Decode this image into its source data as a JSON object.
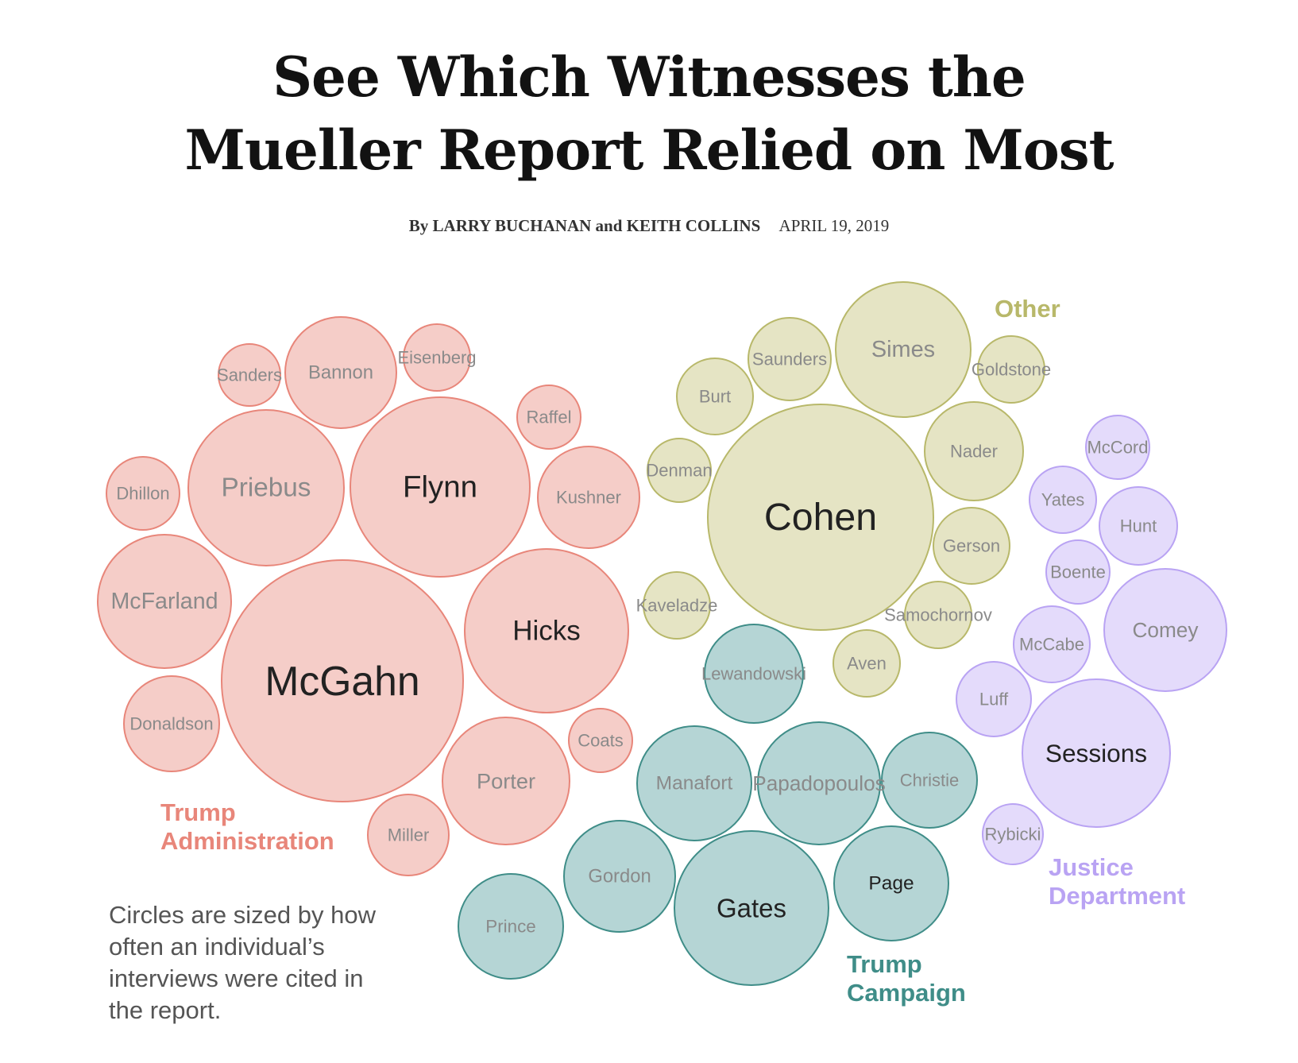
{
  "header": {
    "title_line1": "See Which Witnesses the",
    "title_line2": "Mueller Report Relied on Most",
    "byline": "By LARRY BUCHANAN and KEITH COLLINS",
    "date": "APRIL 19, 2019"
  },
  "note": "Circles are sized by how often an individual’s interviews were cited in the report.",
  "groups": [
    {
      "id": "admin",
      "label_line1": "Trump",
      "label_line2": "Administration",
      "color": "#e8867a",
      "fill": "#f5cdc8"
    },
    {
      "id": "other",
      "label_line1": "Other",
      "label_line2": "",
      "color": "#b8b86a",
      "fill": "#e5e4c4"
    },
    {
      "id": "doj",
      "label_line1": "Justice",
      "label_line2": "Department",
      "color": "#b9a3f3",
      "fill": "#e4dbfb"
    },
    {
      "id": "campaign",
      "label_line1": "Trump",
      "label_line2": "Campaign",
      "color": "#3f8d88",
      "fill": "#b5d5d5"
    }
  ],
  "chart_data": {
    "type": "bubble",
    "size_meaning": "how often an individual’s interviews were cited in the report",
    "series": [
      {
        "name": "Trump Administration",
        "witnesses": [
          {
            "name": "McGahn",
            "size": 100
          },
          {
            "name": "Flynn",
            "size": 54
          },
          {
            "name": "Hicks",
            "size": 46
          },
          {
            "name": "Priebus",
            "size": 40
          },
          {
            "name": "Porter",
            "size": 28
          },
          {
            "name": "McFarland",
            "size": 30
          },
          {
            "name": "Kushner",
            "size": 18
          },
          {
            "name": "Bannon",
            "size": 20
          },
          {
            "name": "Donaldson",
            "size": 16
          },
          {
            "name": "Miller",
            "size": 11
          },
          {
            "name": "Dhillon",
            "size": 9
          },
          {
            "name": "Raffel",
            "size": 7
          },
          {
            "name": "Eisenberg",
            "size": 7
          },
          {
            "name": "Coats",
            "size": 7
          },
          {
            "name": "Sanders",
            "size": 6
          }
        ]
      },
      {
        "name": "Other",
        "witnesses": [
          {
            "name": "Cohen",
            "size": 87
          },
          {
            "name": "Simes",
            "size": 30
          },
          {
            "name": "Nader",
            "size": 16
          },
          {
            "name": "Saunders",
            "size": 11
          },
          {
            "name": "Burt",
            "size": 10
          },
          {
            "name": "Gerson",
            "size": 9
          },
          {
            "name": "Goldstone",
            "size": 7
          },
          {
            "name": "Denman",
            "size": 7
          },
          {
            "name": "Kaveladze",
            "size": 7
          },
          {
            "name": "Samochornov",
            "size": 7
          },
          {
            "name": "Aven",
            "size": 7
          }
        ]
      },
      {
        "name": "Justice Department",
        "witnesses": [
          {
            "name": "Sessions",
            "size": 37
          },
          {
            "name": "Comey",
            "size": 25
          },
          {
            "name": "Hunt",
            "size": 10
          },
          {
            "name": "McCabe",
            "size": 10
          },
          {
            "name": "Luff",
            "size": 9
          },
          {
            "name": "Yates",
            "size": 8
          },
          {
            "name": "Boente",
            "size": 7
          },
          {
            "name": "McCord",
            "size": 7
          },
          {
            "name": "Rybicki",
            "size": 6
          }
        ]
      },
      {
        "name": "Trump Campaign",
        "witnesses": [
          {
            "name": "Gates",
            "size": 40
          },
          {
            "name": "Papadopoulos",
            "size": 24
          },
          {
            "name": "Manafort",
            "size": 22
          },
          {
            "name": "Page",
            "size": 22
          },
          {
            "name": "Gordon",
            "size": 20
          },
          {
            "name": "Prince",
            "size": 18
          },
          {
            "name": "Lewandowski",
            "size": 16
          },
          {
            "name": "Christie",
            "size": 15
          }
        ]
      }
    ]
  }
}
